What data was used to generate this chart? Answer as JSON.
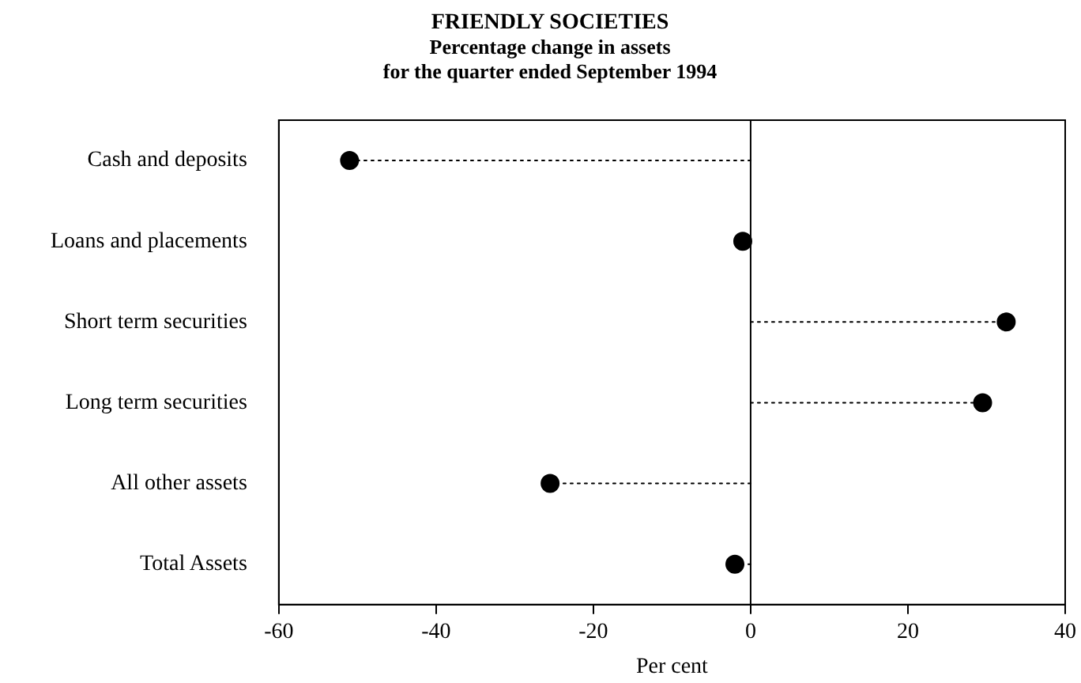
{
  "chart_data": {
    "type": "lollipop",
    "orientation": "horizontal",
    "title": "FRIENDLY SOCIETIES",
    "subtitle": "Percentage change in assets\nfor the quarter ended September 1994",
    "xlabel": "Per cent",
    "categories": [
      "Cash and deposits",
      "Loans and placements",
      "Short term securities",
      "Long term securities",
      "All other assets",
      "Total Assets"
    ],
    "values": [
      -51,
      -1,
      32.5,
      29.5,
      -25.5,
      -2
    ],
    "color": "#000000",
    "xlim": [
      -60,
      40
    ],
    "xticks": [
      -60,
      -40,
      -20,
      0,
      20,
      40
    ],
    "ref_lines": [
      {
        "axis": "x",
        "value": 0
      }
    ],
    "marker": "circle",
    "line_style": "dotted",
    "legend": false
  }
}
